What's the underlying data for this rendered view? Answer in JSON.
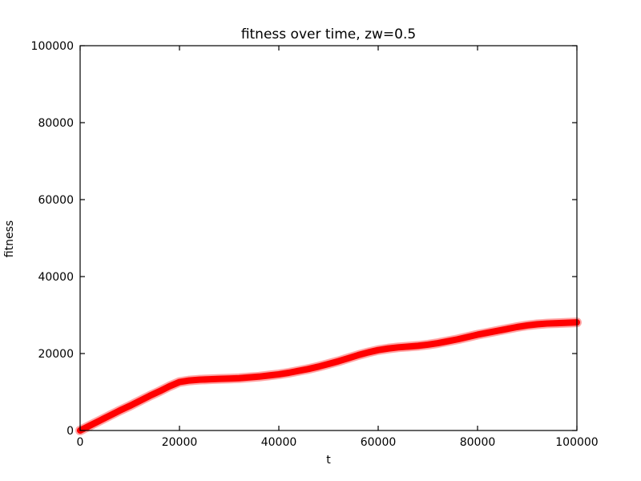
{
  "figure": {
    "background": "#ffffff",
    "axes_color": "#000000"
  },
  "chart_data": {
    "type": "line",
    "title": "fitness over time, zw=0.5",
    "xlabel": "t",
    "ylabel": "fitness",
    "xlim": [
      0,
      100000
    ],
    "ylim": [
      0,
      100000
    ],
    "xticks": [
      0,
      20000,
      40000,
      60000,
      80000,
      100000
    ],
    "yticks": [
      0,
      20000,
      40000,
      60000,
      80000,
      100000
    ],
    "grid": false,
    "legend": null,
    "series": [
      {
        "name": "fitness",
        "color": "#ff0000",
        "marker": "dense-x-band",
        "x": [
          0,
          2000,
          4000,
          6000,
          8000,
          10000,
          12000,
          14000,
          16000,
          18000,
          20000,
          22000,
          24000,
          26000,
          28000,
          30000,
          32000,
          34000,
          36000,
          38000,
          40000,
          42000,
          44000,
          46000,
          48000,
          50000,
          52000,
          54000,
          56000,
          58000,
          60000,
          62000,
          64000,
          66000,
          68000,
          70000,
          72000,
          74000,
          76000,
          78000,
          80000,
          82000,
          84000,
          86000,
          88000,
          90000,
          92000,
          94000,
          96000,
          98000,
          100000
        ],
        "y": [
          0,
          1300,
          2600,
          3900,
          5200,
          6400,
          7700,
          9000,
          10200,
          11500,
          12600,
          13000,
          13200,
          13300,
          13400,
          13500,
          13600,
          13800,
          14000,
          14300,
          14600,
          15000,
          15500,
          16000,
          16600,
          17300,
          18000,
          18800,
          19600,
          20300,
          20900,
          21300,
          21600,
          21800,
          22000,
          22300,
          22700,
          23200,
          23700,
          24300,
          24900,
          25400,
          25900,
          26400,
          26900,
          27300,
          27600,
          27800,
          27900,
          28000,
          28100
        ]
      }
    ]
  }
}
